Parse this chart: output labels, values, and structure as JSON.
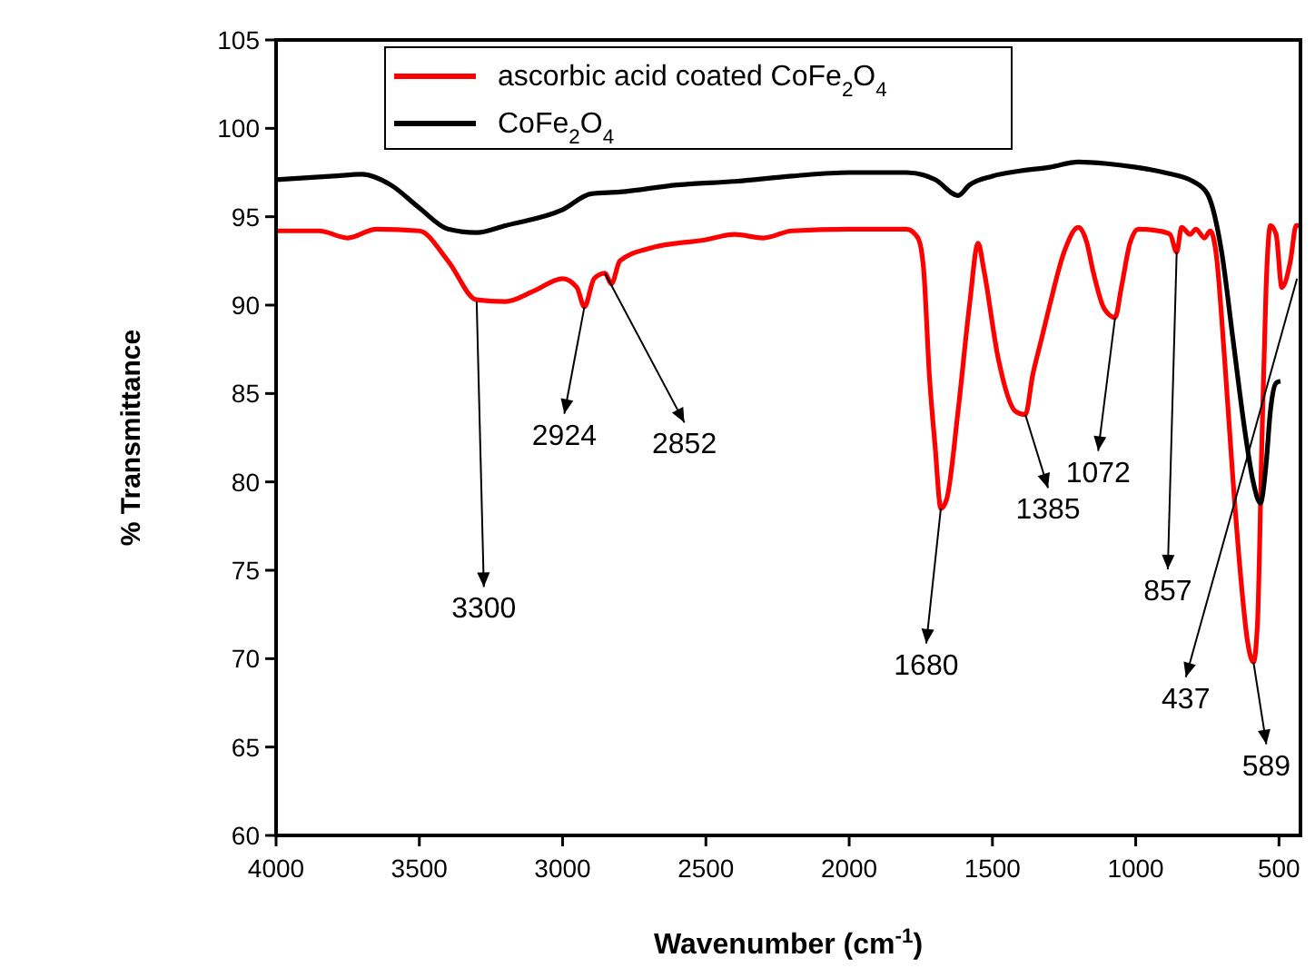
{
  "chart_data": {
    "type": "line",
    "xlabel": "Wavenumber (cm$^{-1}$)",
    "ylabel": "% Transmittance",
    "xlim": [
      4000,
      425
    ],
    "ylim": [
      60,
      105
    ],
    "xticks": [
      4000,
      3500,
      3000,
      2500,
      2000,
      1500,
      1000,
      500
    ],
    "yticks": [
      60,
      65,
      70,
      75,
      80,
      85,
      90,
      95,
      100,
      105
    ],
    "grid": false,
    "legend": "top left",
    "marker": "none",
    "line_style": "solid",
    "series": [
      {
        "name": "ascorbic acid coated CoFe$_{2}$O$_{4}$",
        "color": "#ff0000",
        "x": [
          4000,
          3850,
          3750,
          3650,
          3500,
          3400,
          3300,
          3200,
          3100,
          3000,
          2950,
          2924,
          2890,
          2852,
          2830,
          2800,
          2700,
          2500,
          2400,
          2300,
          2200,
          2000,
          1800,
          1760,
          1740,
          1720,
          1700,
          1680,
          1660,
          1620,
          1580,
          1550,
          1530,
          1480,
          1420,
          1385,
          1360,
          1330,
          1300,
          1250,
          1200,
          1170,
          1150,
          1110,
          1072,
          1050,
          1020,
          990,
          920,
          880,
          857,
          840,
          810,
          790,
          760,
          740,
          720,
          690,
          660,
          630,
          610,
          589,
          575,
          560,
          545,
          530,
          510,
          490,
          460,
          440,
          430
        ],
        "values": [
          94.2,
          94.2,
          93.8,
          94.3,
          94.2,
          92.5,
          90.3,
          90.2,
          90.8,
          91.5,
          91.0,
          89.9,
          91.5,
          91.8,
          91.2,
          92.5,
          93.2,
          93.7,
          94.0,
          93.8,
          94.2,
          94.3,
          94.3,
          93.8,
          92,
          86,
          82,
          78.5,
          79,
          84,
          90,
          93.5,
          92,
          87,
          84,
          83.8,
          86,
          88,
          90,
          93,
          94.4,
          93.5,
          92,
          89.8,
          89.3,
          91,
          93.5,
          94.3,
          94.2,
          94,
          93.0,
          94.4,
          94,
          94.3,
          93.8,
          94.2,
          93,
          87,
          80,
          74,
          71,
          69.8,
          72,
          82,
          91,
          94.5,
          94,
          91,
          92.5,
          94.5,
          94.5
        ]
      },
      {
        "name": "CoFe$_{2}$O$_{4}$",
        "color": "#000000",
        "x": [
          4000,
          3800,
          3700,
          3600,
          3500,
          3400,
          3300,
          3200,
          3000,
          2900,
          2800,
          2600,
          2400,
          2200,
          2000,
          1800,
          1700,
          1620,
          1580,
          1500,
          1400,
          1300,
          1200,
          1100,
          1000,
          900,
          800,
          750,
          700,
          660,
          620,
          590,
          565,
          545,
          530,
          510,
          495
        ],
        "values": [
          97.1,
          97.3,
          97.4,
          96.8,
          95.5,
          94.3,
          94.1,
          94.5,
          95.4,
          96.3,
          96.4,
          96.8,
          97.0,
          97.3,
          97.5,
          97.5,
          97.1,
          96.2,
          96.8,
          97.3,
          97.6,
          97.8,
          98.1,
          98.0,
          97.8,
          97.5,
          97.0,
          96.3,
          93,
          88,
          83,
          80,
          78.8,
          81,
          84,
          85.6,
          85.7
        ]
      }
    ],
    "annotations": [
      {
        "text": "3300",
        "x": 3300,
        "y": 90.2
      },
      {
        "text": "2924",
        "x": 2924,
        "y": 89.9
      },
      {
        "text": "2852",
        "x": 2852,
        "y": 91.8
      },
      {
        "text": "1680",
        "x": 1680,
        "y": 78.5
      },
      {
        "text": "1385",
        "x": 1385,
        "y": 83.8
      },
      {
        "text": "1072",
        "x": 1072,
        "y": 89.3
      },
      {
        "text": "857",
        "x": 857,
        "y": 93.0
      },
      {
        "text": "437",
        "x": 437,
        "y": 91.5
      },
      {
        "text": "589",
        "x": 589,
        "y": 69.8
      }
    ]
  }
}
